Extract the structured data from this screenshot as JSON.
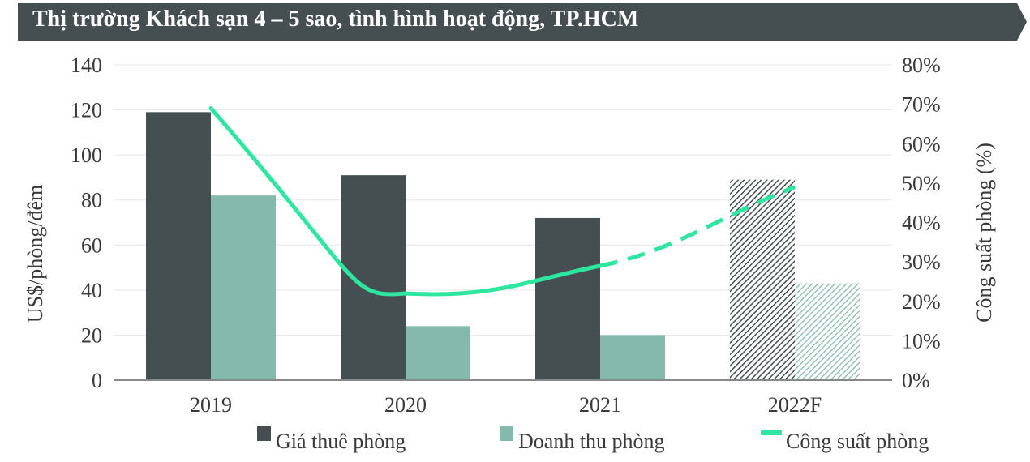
{
  "title": "Thị trường Khách sạn 4 – 5 sao, tình hình hoạt động, TP.HCM",
  "colors": {
    "title_bg": "#454f52",
    "title_text": "#ffffff",
    "price_bar": "#454f52",
    "revenue_bar": "#84b9ab",
    "occupancy_line": "#2ee6a0",
    "axis_text": "#3a3a3a",
    "grid": "#e6e6e6",
    "baseline": "#888888"
  },
  "chart_data": {
    "type": "bar",
    "categories": [
      "2019",
      "2020",
      "2021",
      "2022F"
    ],
    "forecast_category": "2022F",
    "series": [
      {
        "name": "Giá thuê phòng",
        "axis": "left",
        "kind": "bar",
        "color": "#454f52",
        "values": [
          119,
          91,
          72,
          89
        ]
      },
      {
        "name": "Doanh thu phòng",
        "axis": "left",
        "kind": "bar",
        "color": "#84b9ab",
        "values": [
          82,
          24,
          20,
          43
        ]
      },
      {
        "name": "Công suất phòng",
        "axis": "right",
        "kind": "line",
        "color": "#2ee6a0",
        "values": [
          0.69,
          0.22,
          0.29,
          0.49
        ],
        "dashed_from_index": 2,
        "min_value": 0.22
      }
    ],
    "ylabel": "US$/phòng/đêm",
    "ylabel_right": "Công suất phòng (%)",
    "ylim": [
      0,
      140
    ],
    "yticks": [
      "0",
      "20",
      "40",
      "60",
      "80",
      "100",
      "120",
      "140"
    ],
    "ylim_right": [
      0,
      0.8
    ],
    "yticks_right": [
      "0%",
      "10%",
      "20%",
      "30%",
      "40%",
      "50%",
      "60%",
      "70%",
      "80%"
    ],
    "grid": true,
    "legend_position": "bottom"
  }
}
